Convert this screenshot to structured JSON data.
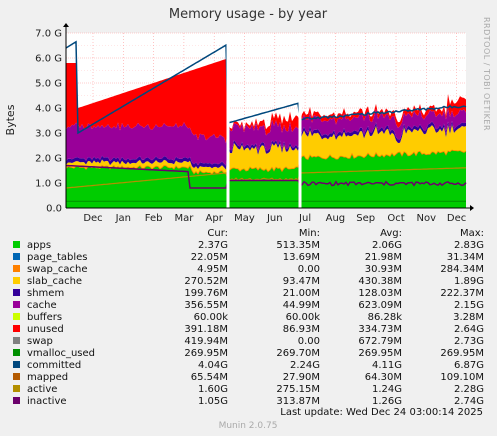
{
  "chart_data": {
    "type": "area",
    "title": "Memory usage - by year",
    "ylabel": "Bytes",
    "side_label": "RRDTOOL / TOBI OETIKER",
    "footer": "Munin 2.0.75",
    "last_update": "Last update: Wed Dec 24 03:00:14 2025",
    "y_ticks": [
      "0.0",
      "1.0 G",
      "2.0 G",
      "3.0 G",
      "4.0 G",
      "5.0 G",
      "6.0 G",
      "7.0 G"
    ],
    "x_ticks": [
      "Dec",
      "Jan",
      "Feb",
      "Mar",
      "Apr",
      "May",
      "Jun",
      "Jul",
      "Aug",
      "Sep",
      "Oct",
      "Nov",
      "Dec"
    ],
    "ylim": [
      0,
      7
    ],
    "grid": true,
    "legend_headers": [
      "Cur:",
      "Min:",
      "Avg:",
      "Max:"
    ],
    "series": [
      {
        "name": "apps",
        "color": "#00cc00",
        "cur": "2.37G",
        "min": "513.35M",
        "avg": "2.06G",
        "max": "2.83G"
      },
      {
        "name": "page_tables",
        "color": "#0066b3",
        "cur": "22.05M",
        "min": "13.69M",
        "avg": "21.98M",
        "max": "31.34M"
      },
      {
        "name": "swap_cache",
        "color": "#ff8000",
        "cur": "4.95M",
        "min": "0.00",
        "avg": "30.93M",
        "max": "284.34M"
      },
      {
        "name": "slab_cache",
        "color": "#ffcc00",
        "cur": "270.52M",
        "min": "93.47M",
        "avg": "430.38M",
        "max": "1.89G"
      },
      {
        "name": "shmem",
        "color": "#330099",
        "cur": "199.76M",
        "min": "21.00M",
        "avg": "128.03M",
        "max": "222.37M"
      },
      {
        "name": "cache",
        "color": "#990099",
        "cur": "356.55M",
        "min": "44.99M",
        "avg": "623.09M",
        "max": "2.15G"
      },
      {
        "name": "buffers",
        "color": "#ccff00",
        "cur": "60.00k",
        "min": "60.00k",
        "avg": "86.28k",
        "max": "3.28M"
      },
      {
        "name": "unused",
        "color": "#ff0000",
        "cur": "391.18M",
        "min": "86.93M",
        "avg": "334.73M",
        "max": "2.64G"
      },
      {
        "name": "swap",
        "color": "#808080",
        "cur": "419.94M",
        "min": "0.00",
        "avg": "672.79M",
        "max": "2.73G"
      },
      {
        "name": "vmalloc_used",
        "color": "#008f00",
        "cur": "269.95M",
        "min": "269.70M",
        "avg": "269.95M",
        "max": "269.95M"
      },
      {
        "name": "committed",
        "color": "#00487d",
        "cur": "4.04G",
        "min": "2.24G",
        "avg": "4.11G",
        "max": "6.87G"
      },
      {
        "name": "mapped",
        "color": "#b35a00",
        "cur": "65.54M",
        "min": "27.90M",
        "avg": "64.30M",
        "max": "109.10M"
      },
      {
        "name": "active",
        "color": "#b38f00",
        "cur": "1.60G",
        "min": "275.15M",
        "avg": "1.24G",
        "max": "2.28G"
      },
      {
        "name": "inactive",
        "color": "#6b006b",
        "cur": "1.05G",
        "min": "313.87M",
        "avg": "1.26G",
        "max": "2.74G"
      }
    ]
  }
}
